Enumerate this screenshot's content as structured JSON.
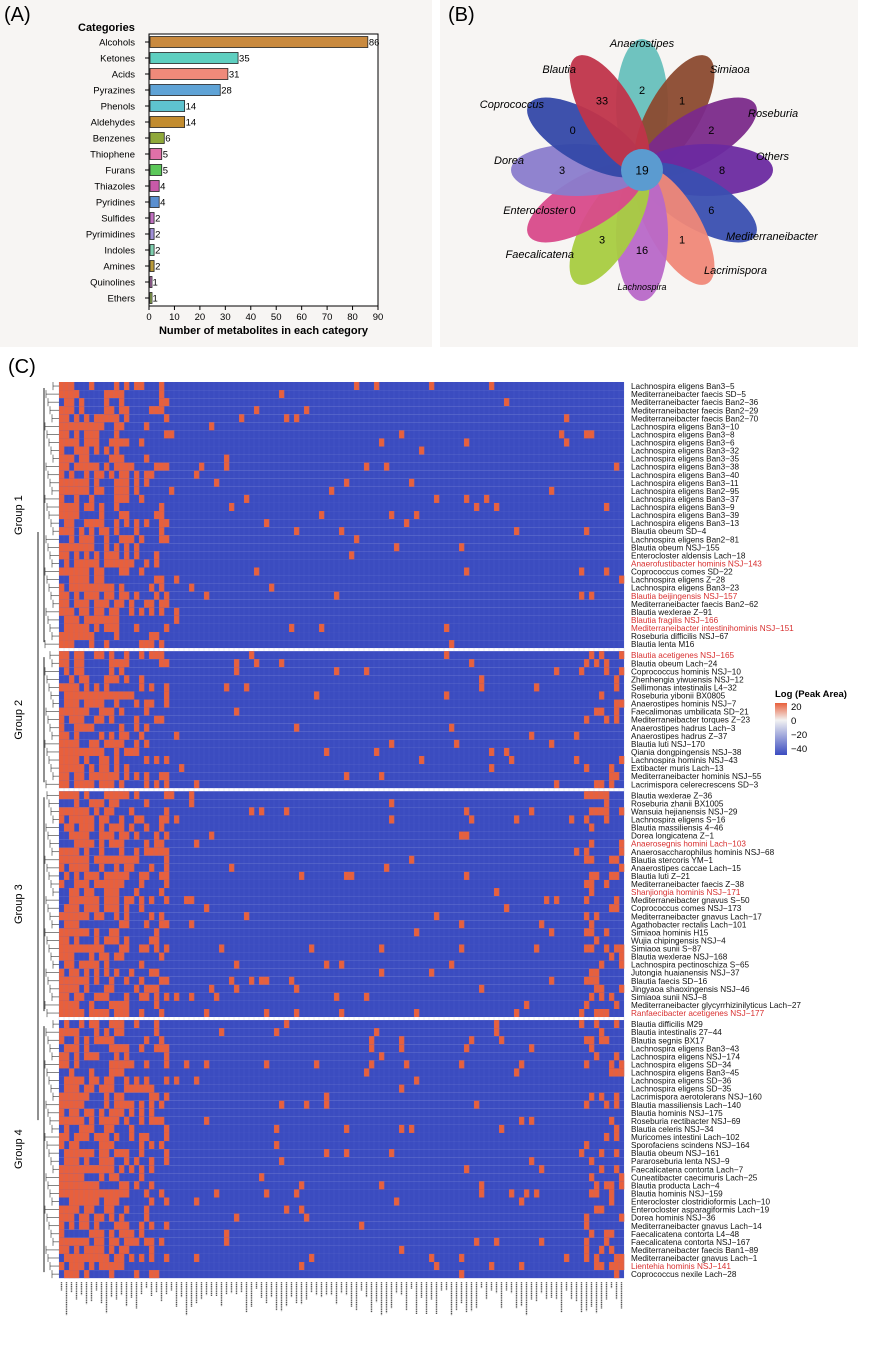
{
  "panels": {
    "a": "(A)",
    "b": "(B)",
    "c": "(C)"
  },
  "chart_data": [
    {
      "type": "bar",
      "orientation": "horizontal",
      "legend_title": "Categories",
      "xlabel": "Number of metabolites in each category",
      "xlim": [
        0,
        90
      ],
      "xticks": [
        "0",
        "10",
        "20",
        "30",
        "40",
        "50",
        "60",
        "70",
        "80",
        "90"
      ],
      "categories": [
        "Alcohols",
        "Ketones",
        "Acids",
        "Pyrazines",
        "Phenols",
        "Aldehydes",
        "Benzenes",
        "Thiophene",
        "Furans",
        "Thiazoles",
        "Pyridines",
        "Sulfides",
        "Pyrimidines",
        "Indoles",
        "Amines",
        "Quinolines",
        "Ethers"
      ],
      "values": [
        86,
        35,
        31,
        28,
        14,
        14,
        6,
        5,
        5,
        4,
        4,
        2,
        2,
        2,
        2,
        1,
        1
      ],
      "colors": [
        "#c98a3f",
        "#5ecfc0",
        "#ef8a7a",
        "#5fa3d6",
        "#5ec3cf",
        "#c28c2f",
        "#8fa83a",
        "#e070a8",
        "#5cc85a",
        "#c85aa8",
        "#5a8fd0",
        "#c070c0",
        "#a090d8",
        "#7fd0b0",
        "#b89a3a",
        "#c77ac4",
        "#a8c860"
      ]
    },
    {
      "type": "venn-flower",
      "center_value": "19",
      "petals": [
        {
          "name": "Anaerostipes",
          "value": "2",
          "color": "#67c0bc"
        },
        {
          "name": "Simiaoa",
          "value": "1",
          "color": "#8b4a2f"
        },
        {
          "name": "Roseburia",
          "value": "2",
          "color": "#7b2a8a"
        },
        {
          "name": "Others",
          "value": "8",
          "color": "#6b2aa0"
        },
        {
          "name": "Mediterraneibacter",
          "value": "6",
          "color": "#3a4fb0"
        },
        {
          "name": "Lacrimispora",
          "value": "1",
          "color": "#f08878"
        },
        {
          "name": "Lachnospira",
          "value": "16",
          "color": "#b868c8"
        },
        {
          "name": "Faecalicatena",
          "value": "3",
          "color": "#a8cc40"
        },
        {
          "name": "Enterocloster",
          "value": "0",
          "color": "#d84a8a"
        },
        {
          "name": "Dorea",
          "value": "3",
          "color": "#8a7ccc"
        },
        {
          "name": "Coprococcus",
          "value": "0",
          "color": "#3448a8"
        },
        {
          "name": "Blautia",
          "value": "33",
          "color": "#c0344a"
        }
      ]
    },
    {
      "type": "heatmap",
      "legend_title": "Log (Peak Area)",
      "legend_ticks": [
        "20",
        "0",
        "−20",
        "−40"
      ],
      "colors": {
        "high": "#e8603c",
        "low": "#3b4cc0",
        "mid": "#f2f2f2"
      },
      "groups": [
        {
          "name": "Group 1",
          "rows": [
            {
              "label": "Lachnospira eligens Ban3−5",
              "red": false
            },
            {
              "label": "Mediterraneibacter faecis SD−5",
              "red": false
            },
            {
              "label": "Mediterraneibacter faecis Ban2−36",
              "red": false
            },
            {
              "label": "Mediterraneibacter faecis Ban2−29",
              "red": false
            },
            {
              "label": "Mediterraneibacter faecis Ban2−70",
              "red": false
            },
            {
              "label": "Lachnospira eligens Ban3−10",
              "red": false
            },
            {
              "label": "Lachnospira eligens Ban3−8",
              "red": false
            },
            {
              "label": "Lachnospira eligens Ban3−6",
              "red": false
            },
            {
              "label": "Lachnospira eligens Ban3−32",
              "red": false
            },
            {
              "label": "Lachnospira eligens Ban3−35",
              "red": false
            },
            {
              "label": "Lachnospira eligens Ban3−38",
              "red": false
            },
            {
              "label": "Lachnospira eligens Ban3−40",
              "red": false
            },
            {
              "label": "Lachnospira eligens Ban3−11",
              "red": false
            },
            {
              "label": "Lachnospira eligens Ban2−95",
              "red": false
            },
            {
              "label": "Lachnospira eligens Ban3−37",
              "red": false
            },
            {
              "label": "Lachnospira eligens Ban3−9",
              "red": false
            },
            {
              "label": "Lachnospira eligens Ban3−39",
              "red": false
            },
            {
              "label": "Lachnospira eligens Ban3−13",
              "red": false
            },
            {
              "label": "Blautia obeum SD−4",
              "red": false
            },
            {
              "label": "Lachnospira eligens Ban2−81",
              "red": false
            },
            {
              "label": "Blautia obeum NSJ−155",
              "red": false
            },
            {
              "label": "Enterocloster aldensis Lach−18",
              "red": false
            },
            {
              "label": "Anaerofustibacter hominis NSJ−143",
              "red": true
            },
            {
              "label": "Coprococcus comes SD−22",
              "red": false
            },
            {
              "label": "Lachnospira eligens Z−28",
              "red": false
            },
            {
              "label": "Lachnospira eligens Ban3−23",
              "red": false
            },
            {
              "label": "Blautia beijingensis NSJ−157",
              "red": true
            },
            {
              "label": "Mediterraneibacter faecis Ban2−62",
              "red": false
            },
            {
              "label": "Blautia wexlerae Z−91",
              "red": false
            },
            {
              "label": "Blautia fragilis NSJ−166",
              "red": true
            },
            {
              "label": "Mediterraneibacter intestinihominis NSJ−151",
              "red": true
            },
            {
              "label": "Roseburia difficilis NSJ−67",
              "red": false
            },
            {
              "label": "Blautia lenta M16",
              "red": false
            }
          ]
        },
        {
          "name": "Group 2",
          "rows": [
            {
              "label": "Blautia acetigenes NSJ−165",
              "red": true
            },
            {
              "label": "Blautia obeum Lach−24",
              "red": false
            },
            {
              "label": "Coprococcus hominis NSJ−10",
              "red": false
            },
            {
              "label": "Zhenhengia yiwuensis NSJ−12",
              "red": false
            },
            {
              "label": "Sellimonas intestinalis L4−32",
              "red": false
            },
            {
              "label": "Roseburia yibonii BX0805",
              "red": false
            },
            {
              "label": "Anaerostipes hominis NSJ−7",
              "red": false
            },
            {
              "label": "Faecalimonas umbilicata SD−21",
              "red": false
            },
            {
              "label": "Mediterraneibacter torques Z−23",
              "red": false
            },
            {
              "label": "Anaerostipes hadrus Lach−3",
              "red": false
            },
            {
              "label": "Anaerostipes hadrus Z−37",
              "red": false
            },
            {
              "label": "Blautia luti NSJ−170",
              "red": false
            },
            {
              "label": "Qiania dongpingensis NSJ−38",
              "red": false
            },
            {
              "label": "Lachnospira hominis NSJ−43",
              "red": false
            },
            {
              "label": "Extibacter muris Lach−13",
              "red": false
            },
            {
              "label": "Mediterraneibacter hominis NSJ−55",
              "red": false
            },
            {
              "label": "Lacrimispora celerecrescens SD−3",
              "red": false
            }
          ]
        },
        {
          "name": "Group 3",
          "rows": [
            {
              "label": "Blautia wexlerae Z−36",
              "red": false
            },
            {
              "label": "Roseburia zhanii BX1005",
              "red": false
            },
            {
              "label": "Wansuia hejianensis NSJ−29",
              "red": false
            },
            {
              "label": "Lachnospira eligens S−16",
              "red": false
            },
            {
              "label": "Blautia massiliensis 4−46",
              "red": false
            },
            {
              "label": "Dorea longicatena Z−1",
              "red": false
            },
            {
              "label": "Anaerosegnis homini Lach−103",
              "red": true
            },
            {
              "label": "Anaerosaccharophilus hominis NSJ−68",
              "red": false
            },
            {
              "label": "Blautia stercoris YM−1",
              "red": false
            },
            {
              "label": "Anaerostipes caccae Lach−15",
              "red": false
            },
            {
              "label": "Blautia luti Z−21",
              "red": false
            },
            {
              "label": "Mediterraneibacter faecis Z−38",
              "red": false
            },
            {
              "label": "Shanjiongia hominis NSJ−171",
              "red": true
            },
            {
              "label": "Mediterraneibacter gnavus S−50",
              "red": false
            },
            {
              "label": "Coprococcus comes NSJ−173",
              "red": false
            },
            {
              "label": "Mediterraneibacter gnavus Lach−17",
              "red": false
            },
            {
              "label": "Agathobacter rectalis Lach−101",
              "red": false
            },
            {
              "label": "Simiaoa hominis H15",
              "red": false
            },
            {
              "label": "Wujia chipingensis NSJ−4",
              "red": false
            },
            {
              "label": "Simiaoa sunii S−87",
              "red": false
            },
            {
              "label": "Blautia wexlerae NSJ−168",
              "red": false
            },
            {
              "label": "Lachnospira pectinoschiza S−65",
              "red": false
            },
            {
              "label": "Jutongia huaianensis NSJ−37",
              "red": false
            },
            {
              "label": "Blautia faecis SD−16",
              "red": false
            },
            {
              "label": "Jingyaoa shaoxingensis NSJ−46",
              "red": false
            },
            {
              "label": "Simiaoa sunii NSJ−8",
              "red": false
            },
            {
              "label": "Mediterraneibacter glycyrrhizinilyticus Lach−27",
              "red": false
            },
            {
              "label": "Ranfaecibacter acetigenes NSJ−177",
              "red": true
            }
          ]
        },
        {
          "name": "Group 4",
          "rows": [
            {
              "label": "Blautia difficilis M29",
              "red": false
            },
            {
              "label": "Blautia intestinalis 27−44",
              "red": false
            },
            {
              "label": "Blautia segnis BX17",
              "red": false
            },
            {
              "label": "Lachnospira eligens Ban3−43",
              "red": false
            },
            {
              "label": "Lachnospira eligens NSJ−174",
              "red": false
            },
            {
              "label": "Lachnospira eligens SD−34",
              "red": false
            },
            {
              "label": "Lachnospira eligens Ban3−45",
              "red": false
            },
            {
              "label": "Lachnospira eligens SD−36",
              "red": false
            },
            {
              "label": "Lachnospira eligens SD−35",
              "red": false
            },
            {
              "label": "Lacrimispora aerotolerans NSJ−160",
              "red": false
            },
            {
              "label": "Blautia massiliensis Lach−140",
              "red": false
            },
            {
              "label": "Blautia hominis NSJ−175",
              "red": false
            },
            {
              "label": "Roseburia rectibacter NSJ−69",
              "red": false
            },
            {
              "label": "Blautia celeris NSJ−34",
              "red": false
            },
            {
              "label": "Muricomes intestini Lach−102",
              "red": false
            },
            {
              "label": "Sporofaciens scindens NSJ−164",
              "red": false
            },
            {
              "label": "Blautia obeum NSJ−161",
              "red": false
            },
            {
              "label": "Pararoseburia lenta NSJ−9",
              "red": false
            },
            {
              "label": "Faecalicatena contorta Lach−7",
              "red": false
            },
            {
              "label": "Cuneatibacter caecimuris Lach−25",
              "red": false
            },
            {
              "label": "Blautia producta Lach−4",
              "red": false
            },
            {
              "label": "Blautia hominis NSJ−159",
              "red": false
            },
            {
              "label": "Enterocloster clostridioformis Lach−10",
              "red": false
            },
            {
              "label": "Enterocloster asparagiformis Lach−19",
              "red": false
            },
            {
              "label": "Dorea hominis NSJ−36",
              "red": false
            },
            {
              "label": "Mediterraneibacter gnavus Lach−14",
              "red": false
            },
            {
              "label": "Faecalicatena contorta L4−48",
              "red": false
            },
            {
              "label": "Faecalicatena contorta NSJ−167",
              "red": false
            },
            {
              "label": "Mediterraneibacter faecis Ban1−89",
              "red": false
            },
            {
              "label": "Mediterraneibacter gnavus Lach−1",
              "red": false
            },
            {
              "label": "Lientehia hominis NSJ−141",
              "red": true
            },
            {
              "label": "Coprococcus nexile Lach−28",
              "red": false
            }
          ]
        }
      ]
    }
  ]
}
